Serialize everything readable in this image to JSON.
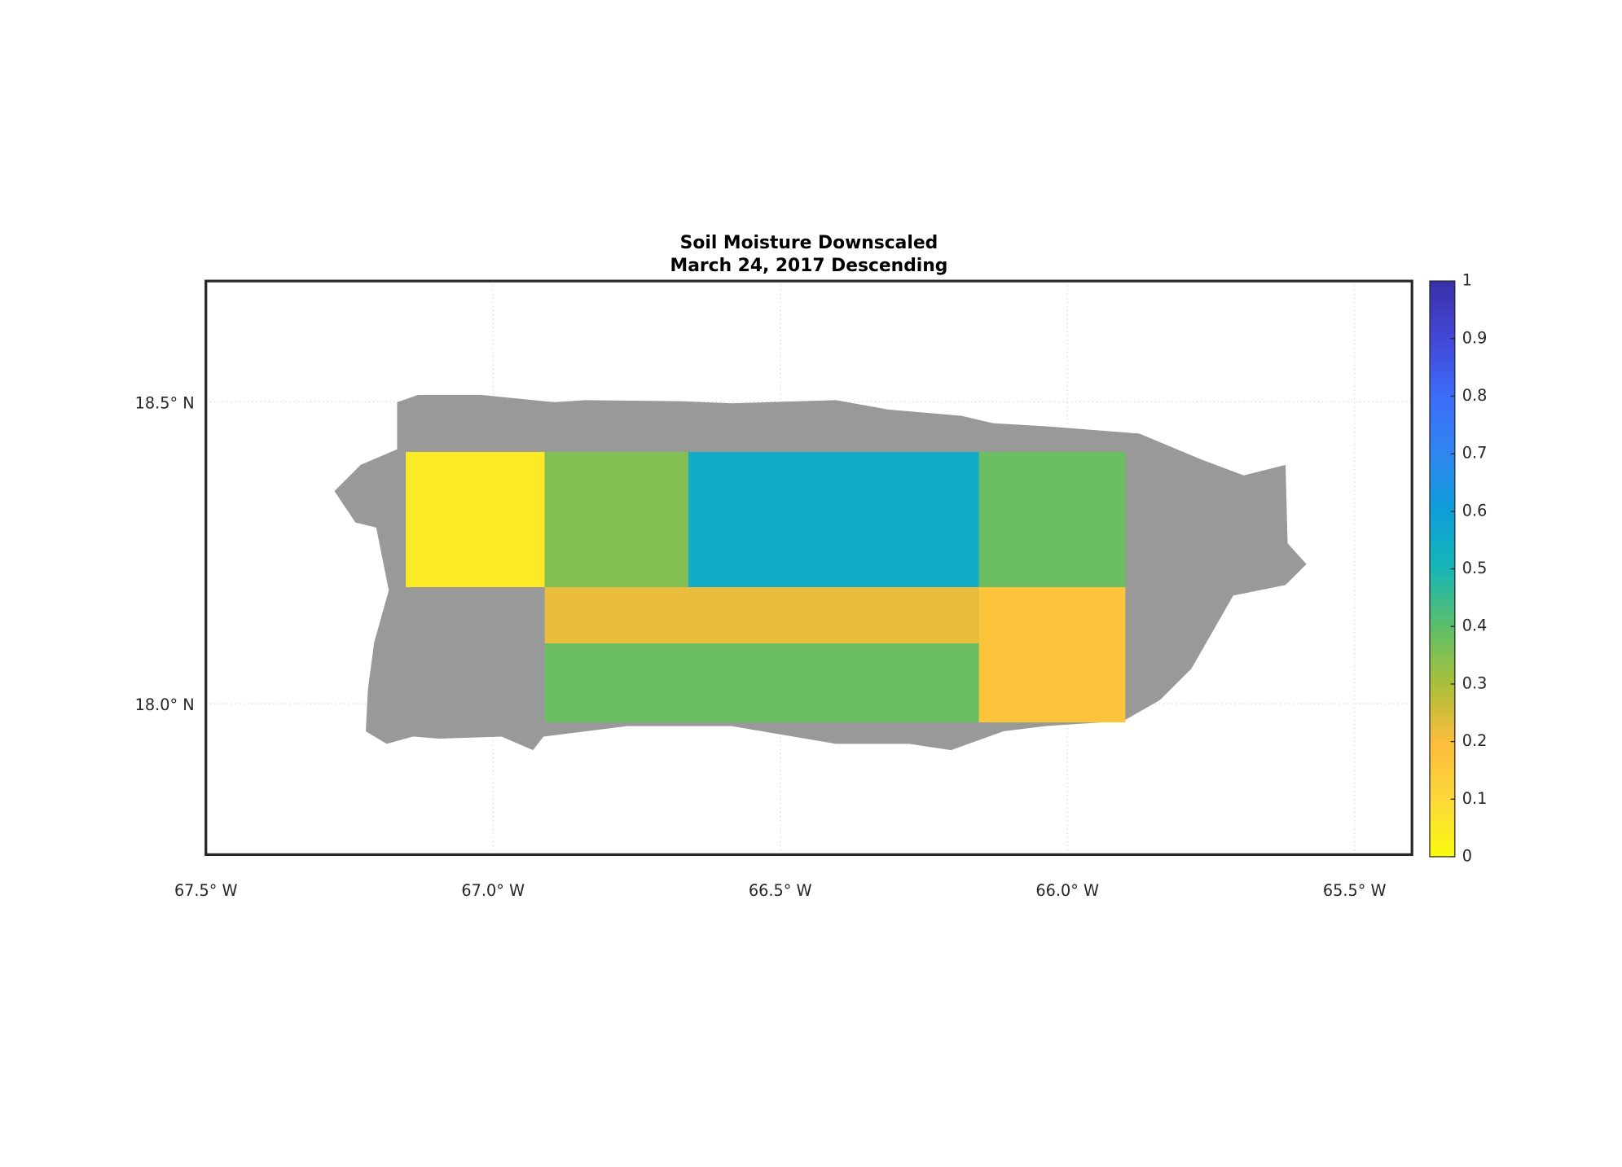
{
  "chart_data": {
    "type": "map",
    "title": [
      "Soil Moisture Downscaled",
      "March 24, 2017 Descending"
    ],
    "xlim": [
      -67.5,
      -65.4
    ],
    "ylim": [
      17.75,
      18.7
    ],
    "xticks": [
      {
        "value": -67.5,
        "label": "67.5° W"
      },
      {
        "value": -67.0,
        "label": "67.0° W"
      },
      {
        "value": -66.5,
        "label": "66.5° W"
      },
      {
        "value": -66.0,
        "label": "66.0° W"
      },
      {
        "value": -65.5,
        "label": "65.5° W"
      }
    ],
    "yticks": [
      {
        "value": 18.0,
        "label": "18.0° N"
      },
      {
        "value": 18.5,
        "label": "18.5° N"
      }
    ],
    "grid": true,
    "land_color": "#999999",
    "colorbar": {
      "lim": [
        0,
        1
      ],
      "ticks": [
        0,
        0.1,
        0.2,
        0.3,
        0.4,
        0.5,
        0.6,
        0.7,
        0.8,
        0.9,
        1
      ]
    },
    "colormap": [
      "#f9fb0e",
      "#fcd83a",
      "#fbbc3c",
      "#a9c03a",
      "#5cbf6b",
      "#17b6b6",
      "#0d9fd9",
      "#2f86f0",
      "#3c6cf8",
      "#4248d6",
      "#3a2fa8"
    ],
    "regions": [
      {
        "lon": [
          -67.152,
          -66.91
        ],
        "lat": [
          18.193,
          18.417
        ],
        "value": 0.05
      },
      {
        "lon": [
          -66.91,
          -66.66
        ],
        "lat": [
          18.193,
          18.417
        ],
        "value": 0.35
      },
      {
        "lon": [
          -66.66,
          -66.154
        ],
        "lat": [
          18.193,
          18.417
        ],
        "value": 0.55
      },
      {
        "lon": [
          -66.154,
          -65.899
        ],
        "lat": [
          18.193,
          18.417
        ],
        "value": 0.38
      },
      {
        "lon": [
          -66.91,
          -66.154
        ],
        "lat": [
          18.1,
          18.193
        ],
        "value": 0.22
      },
      {
        "lon": [
          -66.91,
          -66.154
        ],
        "lat": [
          17.969,
          18.1
        ],
        "value": 0.38
      },
      {
        "lon": [
          -66.154,
          -65.899
        ],
        "lat": [
          17.969,
          18.193
        ],
        "value": 0.17
      }
    ]
  }
}
